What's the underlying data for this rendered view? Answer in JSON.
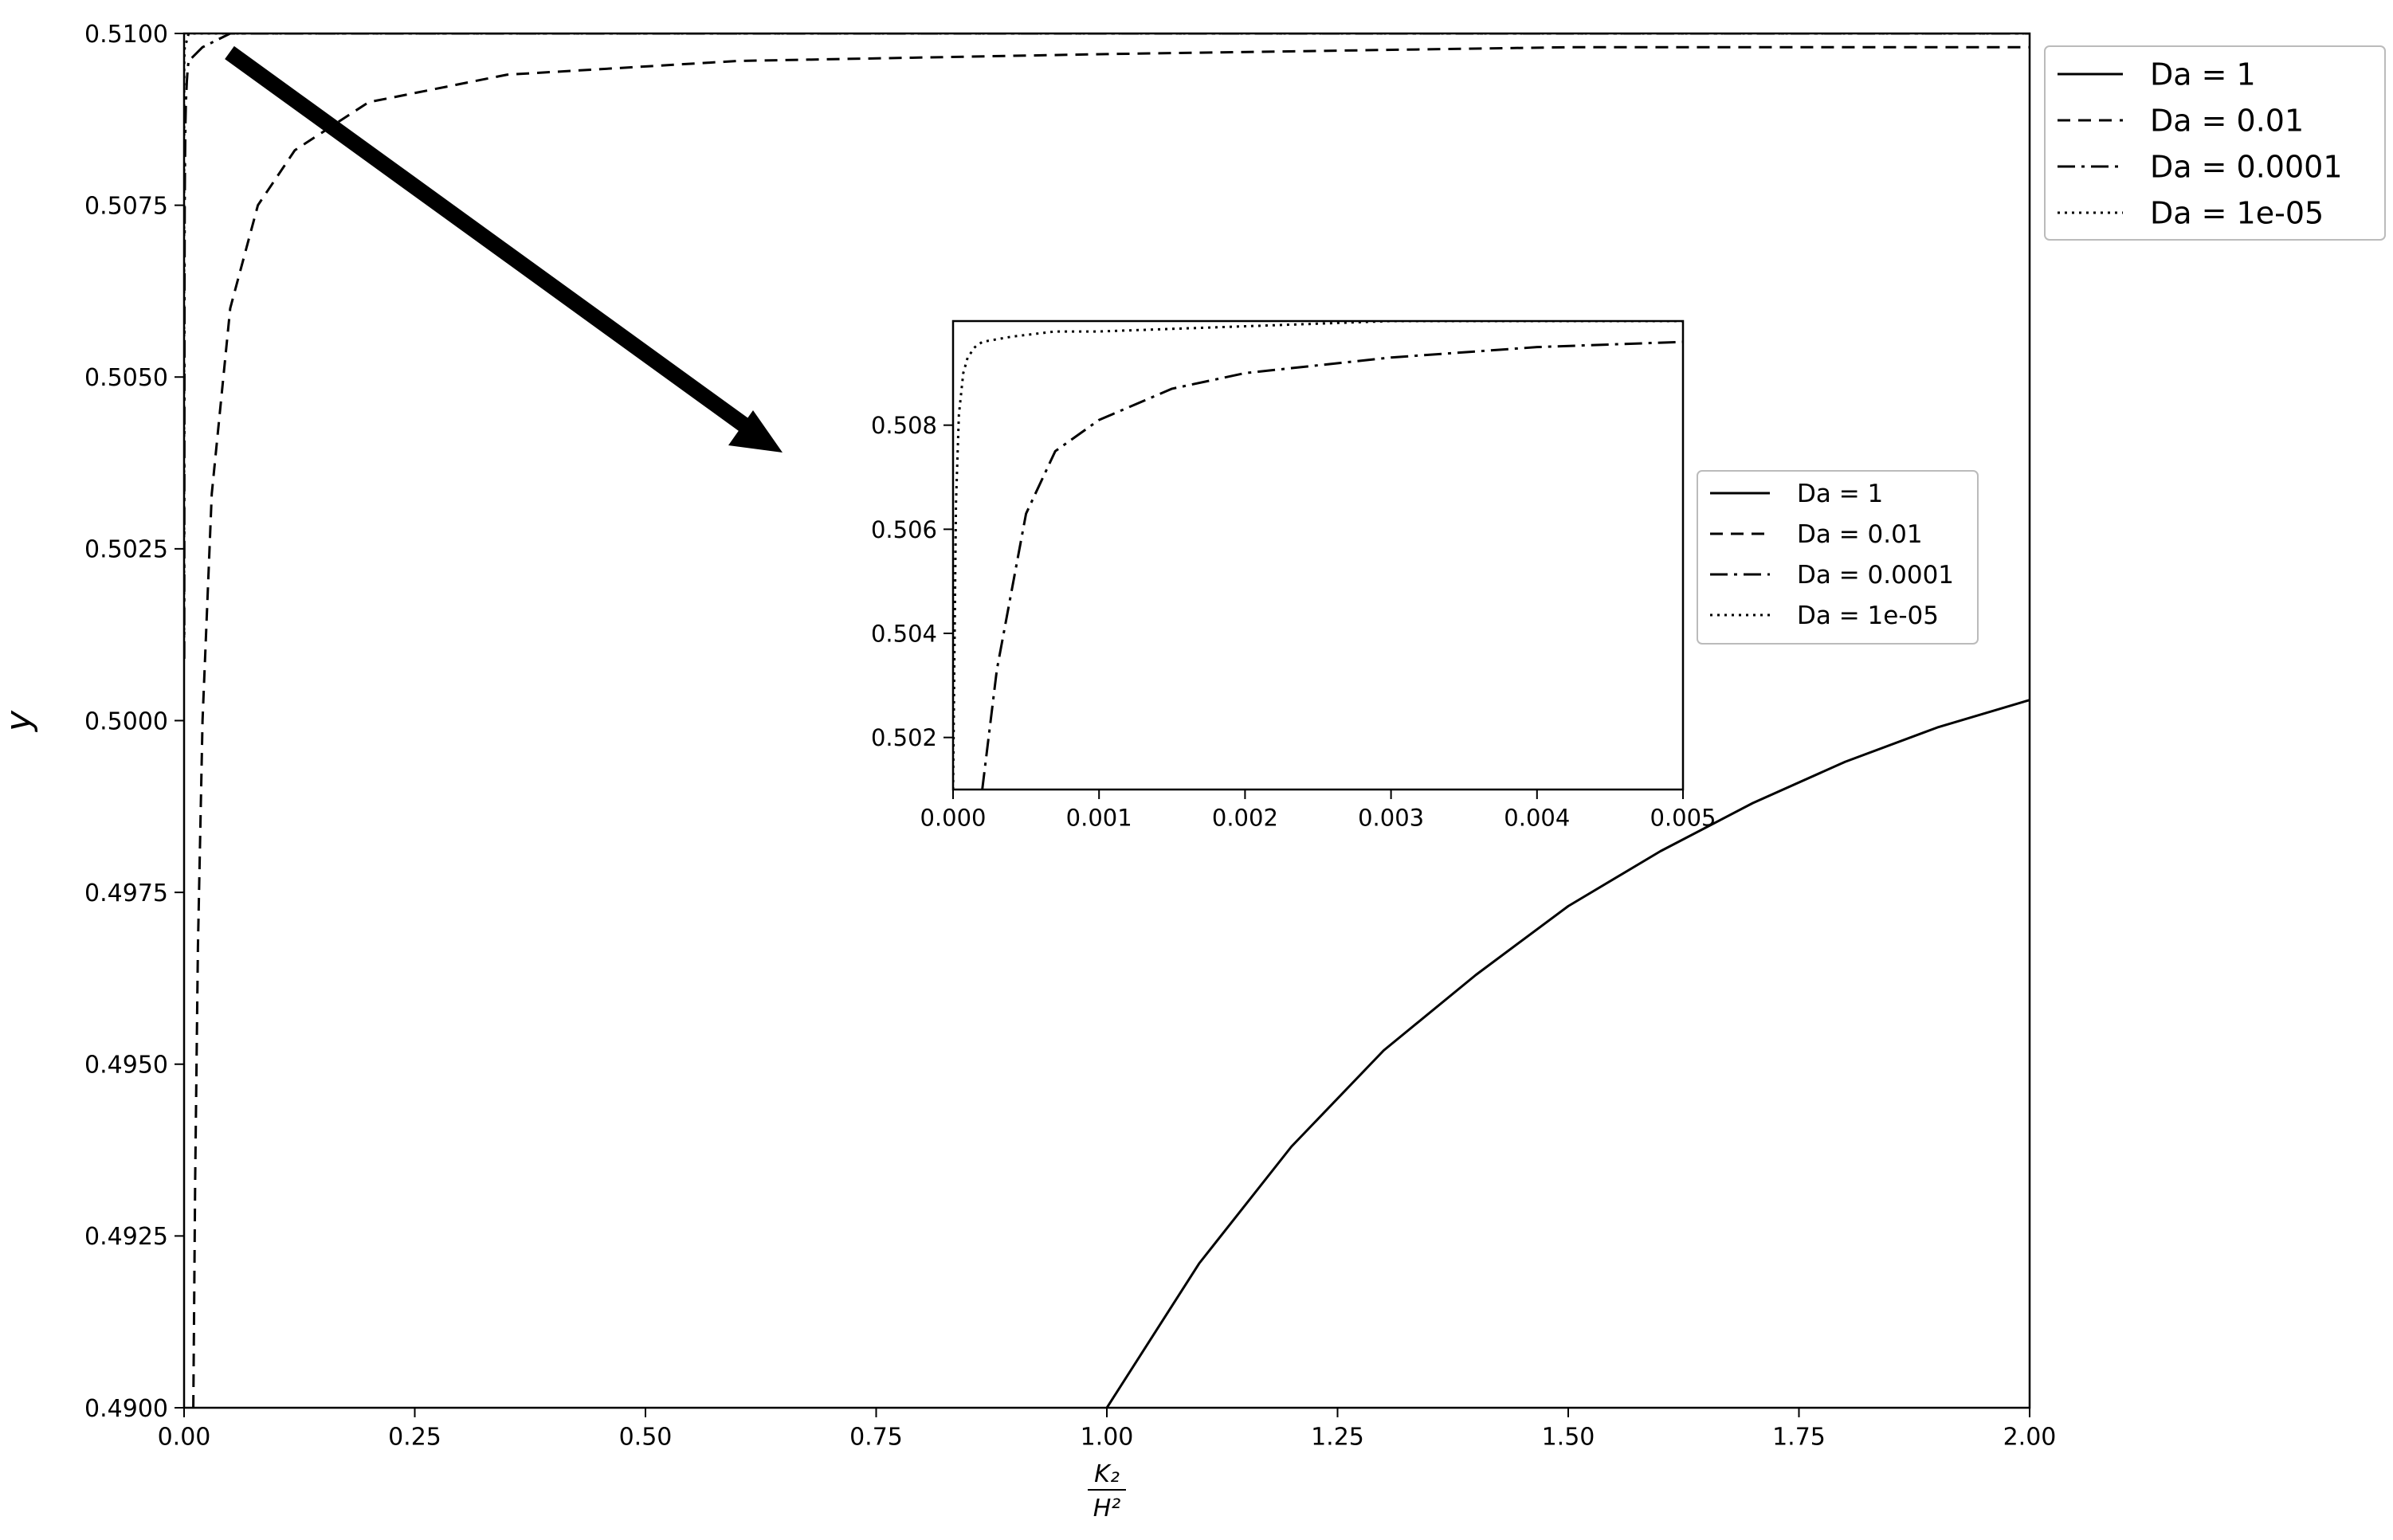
{
  "chart_data": [
    {
      "type": "line",
      "title": "",
      "xlabel": "K₂/H²",
      "xlabel_num": "K₂",
      "xlabel_den": "H²",
      "ylabel": "y",
      "xlim": [
        0.0,
        2.0
      ],
      "ylim": [
        0.49,
        0.51
      ],
      "x_ticks": [
        "0.00",
        "0.25",
        "0.50",
        "0.75",
        "1.00",
        "1.25",
        "1.50",
        "1.75",
        "2.00"
      ],
      "y_ticks": [
        "0.4900",
        "0.4925",
        "0.4950",
        "0.4975",
        "0.5000",
        "0.5025",
        "0.5050",
        "0.5075",
        "0.5100"
      ],
      "grid": false,
      "legend_position": "outside-top-right",
      "series": [
        {
          "name": "Da = 1",
          "style": "solid",
          "x": [
            1.0,
            1.1,
            1.2,
            1.3,
            1.4,
            1.5,
            1.6,
            1.7,
            1.8,
            1.9,
            2.0
          ],
          "y": [
            0.49,
            0.4921,
            0.4938,
            0.4952,
            0.4963,
            0.4973,
            0.4981,
            0.4988,
            0.4994,
            0.4999,
            0.5003
          ]
        },
        {
          "name": "Da = 0.01",
          "style": "dashed",
          "x": [
            0.01,
            0.012,
            0.015,
            0.02,
            0.03,
            0.05,
            0.08,
            0.12,
            0.2,
            0.35,
            0.6,
            1.0,
            1.5,
            2.0
          ],
          "y": [
            0.49,
            0.4933,
            0.4967,
            0.5,
            0.5033,
            0.506,
            0.5075,
            0.5083,
            0.509,
            0.5094,
            0.5096,
            0.5097,
            0.5098,
            0.5098
          ]
        },
        {
          "name": "Da = 0.0001",
          "style": "dashdot",
          "x": [
            0.0002,
            0.0003,
            0.0005,
            0.0007,
            0.001,
            0.0015,
            0.002,
            0.003,
            0.004,
            0.005,
            0.02,
            0.05,
            2.0
          ],
          "y": [
            0.5009,
            0.5033,
            0.5063,
            0.5075,
            0.5081,
            0.5087,
            0.509,
            0.5093,
            0.5095,
            0.5096,
            0.5098,
            0.51,
            0.51
          ]
        },
        {
          "name": "Da = 1e-05",
          "style": "dotted",
          "x": [
            0.0,
            2e-05,
            4e-05,
            7e-05,
            0.0001,
            0.00015,
            0.0002,
            0.0004,
            0.0007,
            0.001,
            0.005,
            2.0
          ],
          "y": [
            0.501,
            0.5065,
            0.5082,
            0.509,
            0.5093,
            0.5095,
            0.5096,
            0.5097,
            0.5098,
            0.5098,
            0.51,
            0.51
          ]
        }
      ]
    },
    {
      "type": "line",
      "title": "",
      "xlabel": "",
      "ylabel": "",
      "xlim": [
        0.0,
        0.005
      ],
      "ylim": [
        0.501,
        0.51
      ],
      "x_ticks": [
        "0.000",
        "0.001",
        "0.002",
        "0.003",
        "0.004",
        "0.005"
      ],
      "y_ticks": [
        "0.502",
        "0.504",
        "0.506",
        "0.508"
      ],
      "grid": false,
      "legend_position": "outside-right",
      "series": [
        {
          "name": "Da = 1",
          "style": "solid",
          "x": [],
          "y": []
        },
        {
          "name": "Da = 0.01",
          "style": "dashed",
          "x": [],
          "y": []
        },
        {
          "name": "Da = 0.0001",
          "style": "dashdot",
          "x": [
            0.0002,
            0.0003,
            0.0005,
            0.0007,
            0.001,
            0.0015,
            0.002,
            0.003,
            0.004,
            0.005
          ],
          "y": [
            0.501,
            0.5033,
            0.5063,
            0.5075,
            0.5081,
            0.5087,
            0.509,
            0.5093,
            0.5095,
            0.5096
          ]
        },
        {
          "name": "Da = 1e-05",
          "style": "dotted",
          "x": [
            0.0,
            2e-05,
            4e-05,
            7e-05,
            0.0001,
            0.00015,
            0.0002,
            0.0004,
            0.0007,
            0.001,
            0.002,
            0.003,
            0.005
          ],
          "y": [
            0.501,
            0.5065,
            0.5082,
            0.509,
            0.5093,
            0.5095,
            0.5096,
            0.5097,
            0.5098,
            0.5098,
            0.5099,
            0.51,
            0.51
          ]
        }
      ]
    }
  ]
}
